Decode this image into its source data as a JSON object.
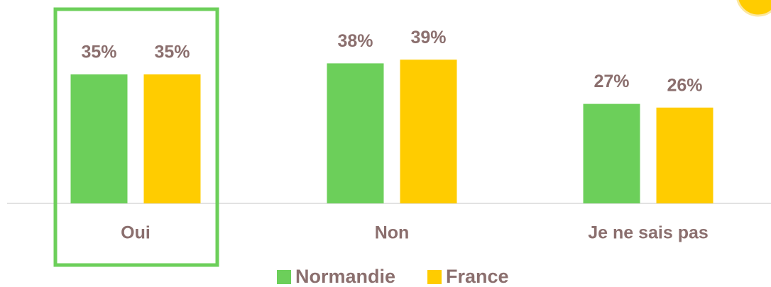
{
  "chart_data": {
    "type": "bar",
    "categories": [
      "Oui",
      "Non",
      "Je ne sais pas"
    ],
    "series": [
      {
        "name": "Normandie",
        "color": "#6ccf5a",
        "values": [
          35,
          38,
          27
        ],
        "value_labels": [
          "35%",
          "38%",
          "27%"
        ]
      },
      {
        "name": "France",
        "color": "#ffcc00",
        "values": [
          35,
          39,
          26
        ],
        "value_labels": [
          "35%",
          "39%",
          "26%"
        ]
      }
    ]
  }
}
